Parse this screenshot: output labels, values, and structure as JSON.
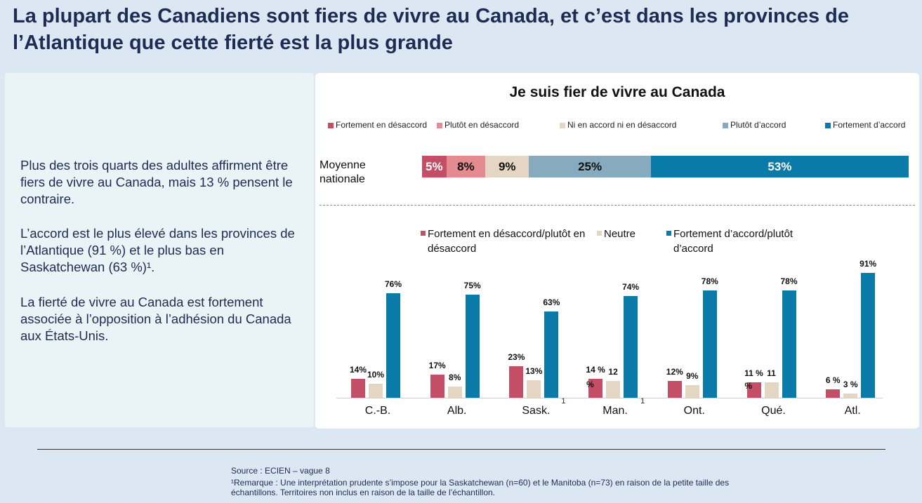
{
  "title": "La plupart des Canadiens sont fiers de vivre au Canada, et c’est dans les provinces de l’Atlantique que cette fierté est la plus grande",
  "left_text": [
    "Plus des trois quarts des adultes affirment être fiers de vivre au Canada, mais 13 % pensent le contraire.",
    "L’accord est le plus élevé dans les provinces de l’Atlantique (91 %) et le plus bas en Saskatchewan (63 %)¹.",
    "La fierté de vivre au Canada est fortement associée à l’opposition à l’adhésion du Canada aux États-Unis."
  ],
  "footer": {
    "source": "Source : ECIEN – vague 8",
    "note": "¹Remarque : Une interprétation prudente s’impose pour la Saskatchewan (n=60) et le Manitoba (n=73) en raison de la petite taille des échantillons. Territoires non inclus en raison de la taille de l’échantillon."
  },
  "chart_data": [
    {
      "type": "bar",
      "stacked": true,
      "orientation": "horizontal",
      "title": "Je suis fier de vivre au Canada",
      "categories": [
        "Moyenne nationale"
      ],
      "series": [
        {
          "name": "Fortement en désaccord",
          "values": [
            5
          ],
          "label": "5%",
          "color": "#c44e65"
        },
        {
          "name": "Plutôt en désaccord",
          "values": [
            8
          ],
          "label": "8%",
          "color": "#e38b8f"
        },
        {
          "name": "Ni en accord ni en désaccord",
          "values": [
            9
          ],
          "label": "9%",
          "color": "#e4d6c2"
        },
        {
          "name": "Plutôt d’accord",
          "values": [
            25
          ],
          "label": "25%",
          "color": "#86abbe"
        },
        {
          "name": "Fortement d’accord",
          "values": [
            53
          ],
          "label": "53%",
          "color": "#0a7aa8"
        }
      ],
      "legend": "top"
    },
    {
      "type": "bar",
      "categories": [
        "C.-B.",
        "Alb.",
        "Sask.",
        "Man.",
        "Ont.",
        "Qué.",
        "Atl."
      ],
      "category_notes": [
        "",
        "",
        "1",
        "1",
        "",
        "",
        ""
      ],
      "series": [
        {
          "name": "Fortement en désaccord/plutôt en désaccord",
          "color": "#c44e65",
          "values": [
            14,
            17,
            23,
            14,
            12,
            11,
            6
          ],
          "labels": [
            "14%",
            "17%",
            "23%",
            "14 %",
            "12%",
            "11 %",
            "6 %"
          ]
        },
        {
          "name": "Neutre",
          "color": "#e4d6c2",
          "values": [
            10,
            8,
            13,
            12,
            9,
            11,
            3
          ],
          "labels": [
            "10%",
            "8%",
            "13%",
            "12 %",
            "9%",
            "11 %",
            "3 %"
          ]
        },
        {
          "name": "Fortement d’accord/plutôt d’accord",
          "color": "#0a7aa8",
          "values": [
            76,
            75,
            63,
            74,
            78,
            78,
            91
          ],
          "labels": [
            "76%",
            "75%",
            "63%",
            "74%",
            "78%",
            "78%",
            "91%"
          ]
        }
      ],
      "legend": "top",
      "ylim": [
        0,
        100
      ]
    }
  ]
}
